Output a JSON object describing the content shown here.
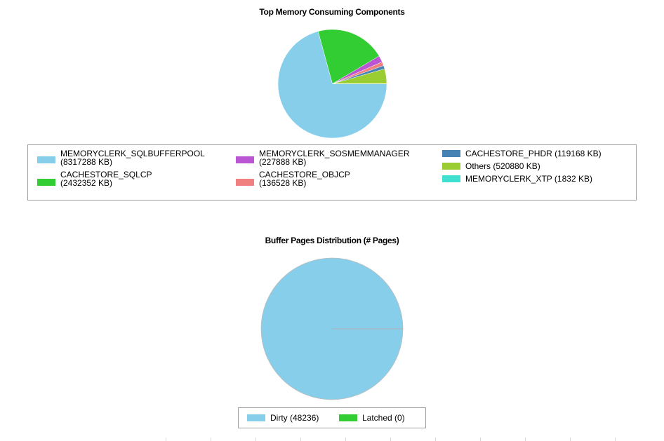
{
  "chart_data": [
    {
      "type": "pie",
      "title": "Top Memory Consuming Components",
      "series": [
        {
          "name": "MEMORYCLERK_SQLBUFFERPOOL",
          "label": "MEMORYCLERK_SQLBUFFERPOOL (8317288 KB)",
          "value": 8317288,
          "color": "#87CEEB"
        },
        {
          "name": "CACHESTORE_SQLCP",
          "label": "CACHESTORE_SQLCP (2432352 KB)",
          "value": 2432352,
          "color": "#32CD32"
        },
        {
          "name": "MEMORYCLERK_SOSMEMMANAGER",
          "label": "MEMORYCLERK_SOSMEMMANAGER (227888 KB)",
          "value": 227888,
          "color": "#BA55D3"
        },
        {
          "name": "CACHESTORE_OBJCP",
          "label": "CACHESTORE_OBJCP (136528 KB)",
          "value": 136528,
          "color": "#F08080"
        },
        {
          "name": "CACHESTORE_PHDR",
          "label": "CACHESTORE_PHDR (119168 KB)",
          "value": 119168,
          "color": "#4682B4"
        },
        {
          "name": "Others",
          "label": "Others (520880 KB)",
          "value": 520880,
          "color": "#9ACD32"
        },
        {
          "name": "MEMORYCLERK_XTP",
          "label": "MEMORYCLERK_XTP (1832 KB)",
          "value": 1832,
          "color": "#40E0D0"
        }
      ],
      "legend": "bottom",
      "slice_order": [
        "Others",
        "CACHESTORE_PHDR",
        "CACHESTORE_OBJCP",
        "MEMORYCLERK_SOSMEMMANAGER",
        "CACHESTORE_SQLCP",
        "MEMORYCLERK_SQLBUFFERPOOL",
        "MEMORYCLERK_XTP"
      ]
    },
    {
      "type": "pie",
      "title": "Buffer Pages Distribution (# Pages)",
      "series": [
        {
          "name": "Dirty",
          "label": "Dirty (48236)",
          "value": 48236,
          "color": "#87CEEB"
        },
        {
          "name": "Latched",
          "label": "Latched (0)",
          "value": 0,
          "color": "#32CD32"
        }
      ],
      "legend": "bottom"
    }
  ]
}
